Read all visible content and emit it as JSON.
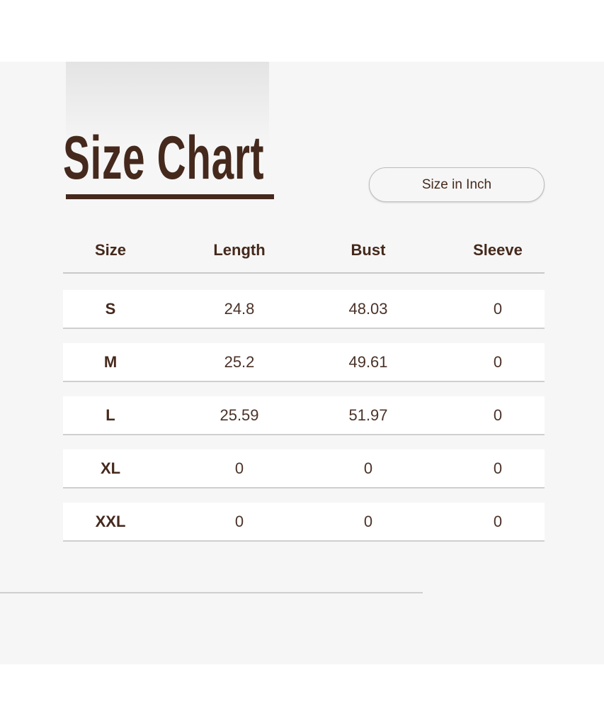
{
  "title": "Size Chart",
  "unit_button": "Size in Inch",
  "table": {
    "headers": [
      "Size",
      "Length",
      "Bust",
      "Sleeve"
    ],
    "rows": [
      [
        "S",
        "24.8",
        "48.03",
        "0"
      ],
      [
        "M",
        "25.2",
        "49.61",
        "0"
      ],
      [
        "L",
        "25.59",
        "51.97",
        "0"
      ],
      [
        "XL",
        "0",
        "0",
        "0"
      ],
      [
        "XXL",
        "0",
        "0",
        "0"
      ]
    ]
  },
  "colors": {
    "text": "#45291c",
    "background": "#f6f6f6"
  }
}
